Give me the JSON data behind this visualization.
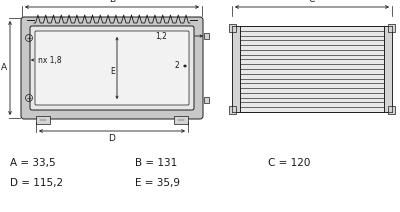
{
  "dimensions": {
    "A": "33,5",
    "B": "131",
    "C": "120",
    "D": "115,2",
    "E": "35,9"
  },
  "annotations": {
    "nx": "nx 1,8",
    "d1": "1,2",
    "d2": "2"
  },
  "line_color": "#1a1a1a",
  "bg_color": "#ffffff",
  "dim_color": "#1a1a1a",
  "gray_outer": "#c8c8c8",
  "gray_inner": "#e8e8e8",
  "gray_mid": "#d4d4d4"
}
